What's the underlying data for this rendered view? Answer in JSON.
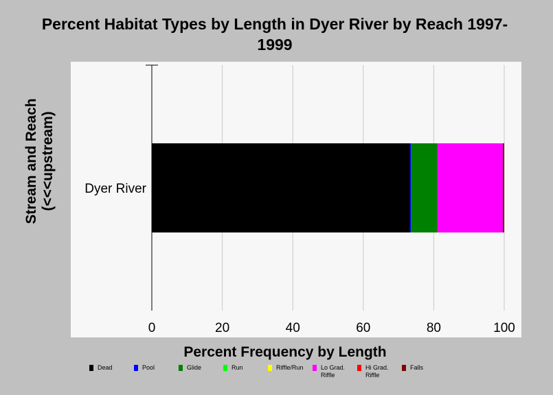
{
  "chart_data": {
    "type": "bar",
    "orientation": "horizontal",
    "stacked": true,
    "title": "Percent Habitat Types by Length in Dyer River by Reach 1997-1999",
    "xlabel": "Percent Frequency by Length",
    "ylabel": "Stream and Reach (<<<upstream)",
    "categories": [
      "Dyer River"
    ],
    "xlim": [
      0,
      100
    ],
    "xticks": [
      "0",
      "20",
      "40",
      "60",
      "80",
      "100"
    ],
    "grid": "vertical",
    "legend_position": "bottom",
    "series": [
      {
        "name": "Dead",
        "color": "#000000",
        "values": [
          73.2
        ]
      },
      {
        "name": "Pool",
        "color": "#0000ff",
        "values": [
          0.3
        ]
      },
      {
        "name": "Glide",
        "color": "#008000",
        "values": [
          7.5
        ]
      },
      {
        "name": "Run",
        "color": "#00ff00",
        "values": [
          0
        ]
      },
      {
        "name": "Riffle/Run",
        "color": "#ffff00",
        "values": [
          0
        ]
      },
      {
        "name": "Lo Grad. Riffle",
        "color": "#ff00ff",
        "values": [
          18.6
        ]
      },
      {
        "name": "Hi Grad. Riffle",
        "color": "#ff0000",
        "values": [
          0
        ]
      },
      {
        "name": "Falls",
        "color": "#800000",
        "values": [
          0.4
        ]
      }
    ]
  }
}
